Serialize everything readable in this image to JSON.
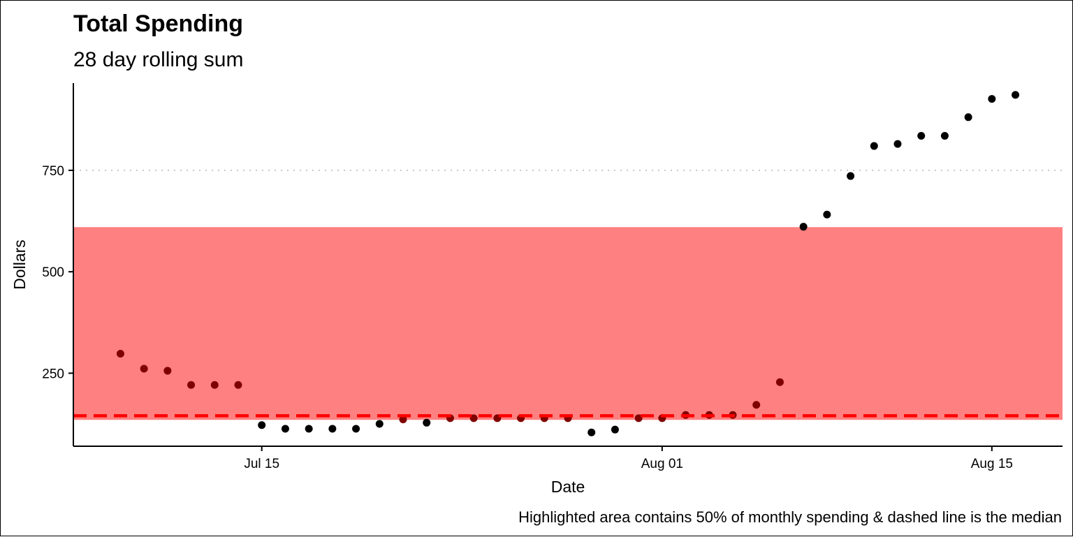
{
  "chart_data": {
    "type": "scatter",
    "title": "Total Spending",
    "subtitle": "28 day rolling sum",
    "xlabel": "Date",
    "ylabel": "Dollars",
    "caption": "Highlighted area contains 50% of monthly spending & dashed line is the median",
    "x_ticks": [
      {
        "date": "2023-07-15",
        "label": "Jul 15"
      },
      {
        "date": "2023-08-01",
        "label": "Aug 01"
      },
      {
        "date": "2023-08-15",
        "label": "Aug 15"
      }
    ],
    "y_ticks": [
      250,
      500,
      750
    ],
    "xlim": [
      "2023-07-07",
      "2023-08-18"
    ],
    "ylim": [
      70,
      965
    ],
    "grid": "horizontal dotted",
    "highlight_band": {
      "ymin": 135,
      "ymax": 610,
      "color": "#ff8080"
    },
    "median_line": {
      "y": 145,
      "color": "#ff0000",
      "style": "dashed"
    },
    "point_color": "#000000",
    "band_point_color": "#800000",
    "series": [
      {
        "points": [
          {
            "x": "2023-07-09",
            "y": 298
          },
          {
            "x": "2023-07-10",
            "y": 261
          },
          {
            "x": "2023-07-11",
            "y": 256
          },
          {
            "x": "2023-07-12",
            "y": 221
          },
          {
            "x": "2023-07-13",
            "y": 221
          },
          {
            "x": "2023-07-14",
            "y": 221
          },
          {
            "x": "2023-07-15",
            "y": 122
          },
          {
            "x": "2023-07-16",
            "y": 113
          },
          {
            "x": "2023-07-17",
            "y": 113
          },
          {
            "x": "2023-07-18",
            "y": 113
          },
          {
            "x": "2023-07-19",
            "y": 113
          },
          {
            "x": "2023-07-20",
            "y": 125
          },
          {
            "x": "2023-07-21",
            "y": 136
          },
          {
            "x": "2023-07-22",
            "y": 128
          },
          {
            "x": "2023-07-23",
            "y": 139
          },
          {
            "x": "2023-07-24",
            "y": 139
          },
          {
            "x": "2023-07-25",
            "y": 139
          },
          {
            "x": "2023-07-26",
            "y": 139
          },
          {
            "x": "2023-07-27",
            "y": 139
          },
          {
            "x": "2023-07-28",
            "y": 139
          },
          {
            "x": "2023-07-29",
            "y": 104
          },
          {
            "x": "2023-07-30",
            "y": 111
          },
          {
            "x": "2023-07-31",
            "y": 139
          },
          {
            "x": "2023-08-01",
            "y": 139
          },
          {
            "x": "2023-08-02",
            "y": 147
          },
          {
            "x": "2023-08-03",
            "y": 147
          },
          {
            "x": "2023-08-04",
            "y": 147
          },
          {
            "x": "2023-08-05",
            "y": 172
          },
          {
            "x": "2023-08-06",
            "y": 228
          },
          {
            "x": "2023-08-07",
            "y": 611
          },
          {
            "x": "2023-08-08",
            "y": 641
          },
          {
            "x": "2023-08-09",
            "y": 736
          },
          {
            "x": "2023-08-10",
            "y": 810
          },
          {
            "x": "2023-08-11",
            "y": 815
          },
          {
            "x": "2023-08-12",
            "y": 835
          },
          {
            "x": "2023-08-13",
            "y": 835
          },
          {
            "x": "2023-08-14",
            "y": 881
          },
          {
            "x": "2023-08-15",
            "y": 926
          },
          {
            "x": "2023-08-16",
            "y": 936
          }
        ]
      }
    ]
  }
}
